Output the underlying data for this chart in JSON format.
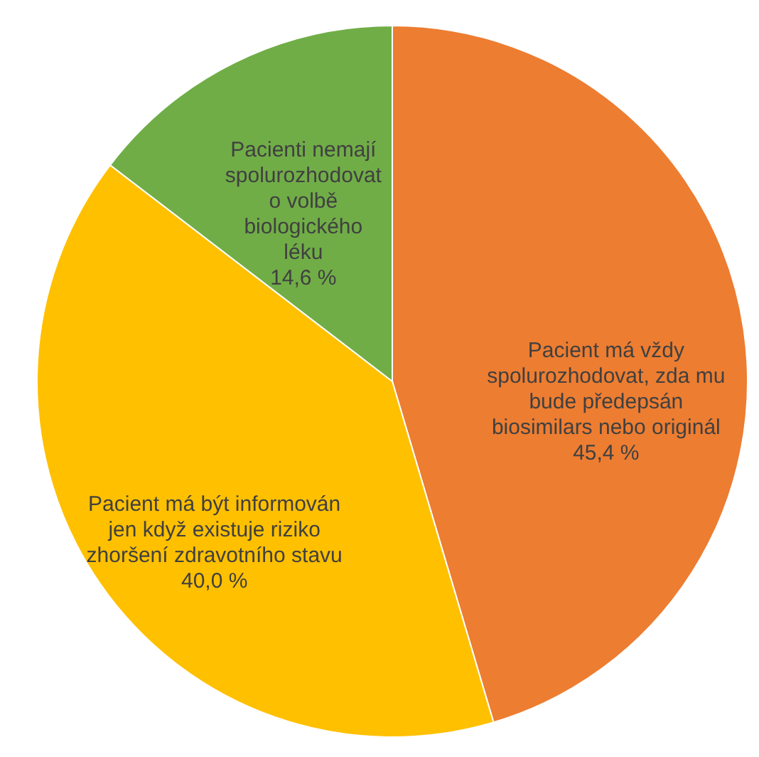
{
  "chart_data": {
    "type": "pie",
    "categories": [
      "Pacient má vždy spolurozhodovat, zda mu bude předepsán biosimilars nebo originál",
      "Pacient má být informován jen když existuje riziko zhoršení zdravotního stavu",
      "Pacienti nemají spolurozhodovat o volbě biologického léku"
    ],
    "values": [
      45.4,
      40.0,
      14.6
    ],
    "value_labels": [
      "45,4 %",
      "40,0 %",
      "14,6 %"
    ],
    "colors": [
      "#ed7d31",
      "#ffc000",
      "#70ad47"
    ],
    "legend": false
  }
}
